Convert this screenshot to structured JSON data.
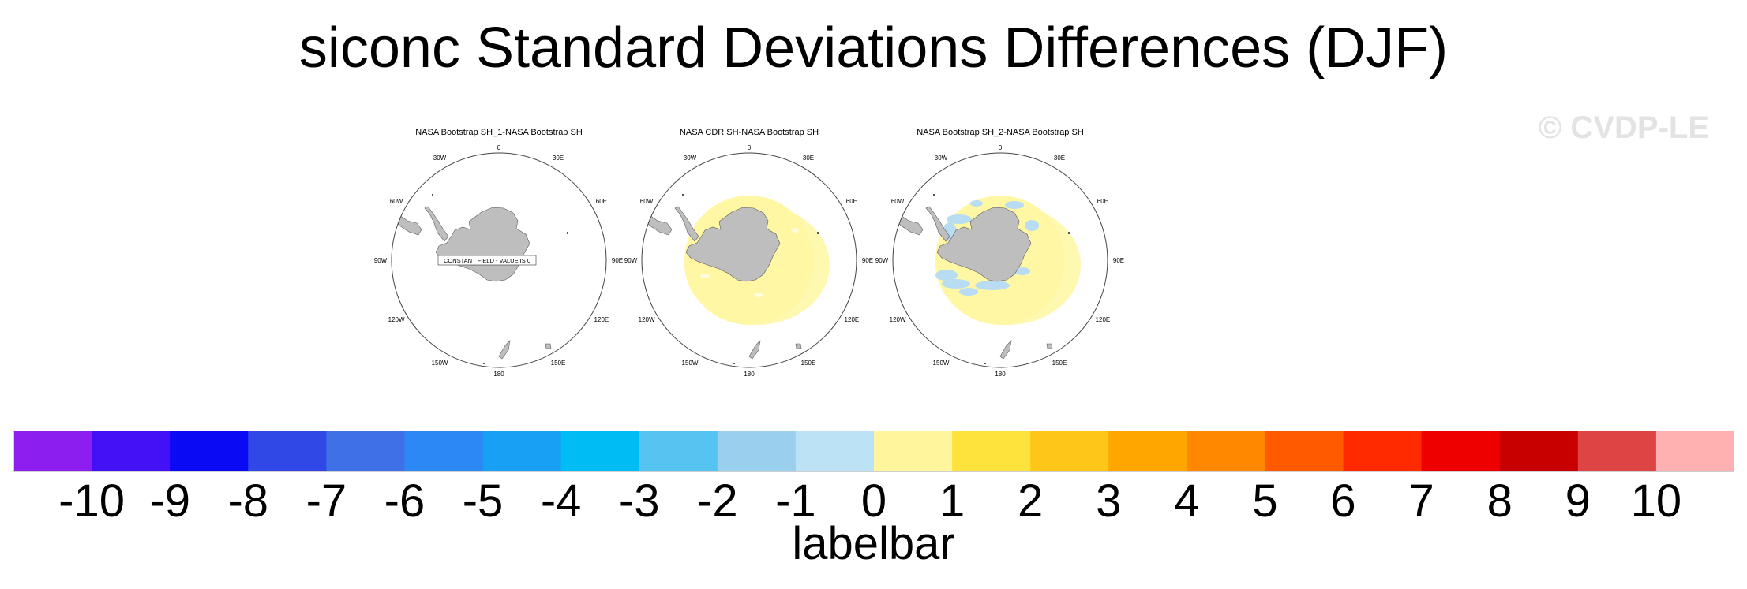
{
  "title": "siconc Standard Deviations Differences (DJF)",
  "watermark": "© CVDP-LE",
  "panels": [
    {
      "title": "NASA Bootstrap SH_1-NASA Bootstrap SH",
      "note": "CONSTANT FIELD - VALUE IS 0",
      "field": "constant"
    },
    {
      "title": "NASA CDR SH-NASA Bootstrap SH",
      "field": "positive"
    },
    {
      "title": "NASA Bootstrap SH_2-NASA Bootstrap SH",
      "field": "mixed"
    }
  ],
  "map_labels": {
    "north": "0",
    "south": "180",
    "left": [
      "30W",
      "60W",
      "90W",
      "120W",
      "150W"
    ],
    "right": [
      "30E",
      "60E",
      "90E",
      "120E",
      "150E"
    ]
  },
  "colors": {
    "land": "#bebebe",
    "outline": "#5a5a5a"
  },
  "labelbar": {
    "title": "labelbar",
    "ticks": [
      "-10",
      "-9",
      "-8",
      "-7",
      "-6",
      "-5",
      "-4",
      "-3",
      "-2",
      "-1",
      "0",
      "1",
      "2",
      "3",
      "4",
      "5",
      "6",
      "7",
      "8",
      "9",
      "10"
    ],
    "colors": [
      "#8c1ff0",
      "#4410f5",
      "#0a0af5",
      "#3048e6",
      "#3f70e8",
      "#2b88f5",
      "#18a0f5",
      "#00bcf5",
      "#55c4f0",
      "#9ad0ee",
      "#bce2f5",
      "#fff59d",
      "#ffe33d",
      "#ffc61a",
      "#ffa600",
      "#ff8800",
      "#ff5a00",
      "#ff2a00",
      "#ef0000",
      "#c80000",
      "#dd4444",
      "#ffb0b0"
    ]
  }
}
